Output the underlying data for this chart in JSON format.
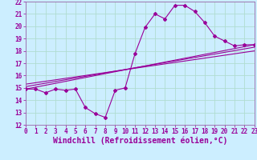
{
  "xlabel": "Windchill (Refroidissement éolien,°C)",
  "bg_color": "#cceeff",
  "grid_color": "#b0ddd0",
  "line_color": "#990099",
  "spine_color": "#9966aa",
  "x_min": 0,
  "x_max": 23,
  "y_min": 12,
  "y_max": 22,
  "series_main_x": [
    0,
    1,
    2,
    3,
    4,
    5,
    6,
    7,
    8,
    9,
    10,
    11,
    12,
    13,
    14,
    15,
    16,
    17,
    18,
    19,
    20,
    21,
    22,
    23
  ],
  "series_main_y": [
    14.9,
    14.9,
    14.6,
    14.9,
    14.8,
    14.9,
    13.4,
    12.9,
    12.6,
    14.8,
    15.0,
    17.8,
    19.9,
    21.0,
    20.6,
    21.7,
    21.7,
    21.2,
    20.3,
    19.2,
    18.8,
    18.4,
    18.5,
    18.5
  ],
  "series_line2_x": [
    0,
    23
  ],
  "series_line2_y": [
    14.9,
    18.5
  ],
  "series_line3_x": [
    0,
    23
  ],
  "series_line3_y": [
    15.1,
    18.3
  ],
  "series_line4_x": [
    0,
    23
  ],
  "series_line4_y": [
    15.3,
    18.0
  ],
  "x_ticks": [
    0,
    1,
    2,
    3,
    4,
    5,
    6,
    7,
    8,
    9,
    10,
    11,
    12,
    13,
    14,
    15,
    16,
    17,
    18,
    19,
    20,
    21,
    22,
    23
  ],
  "y_ticks": [
    12,
    13,
    14,
    15,
    16,
    17,
    18,
    19,
    20,
    21,
    22
  ],
  "tick_fontsize": 5.5,
  "xlabel_fontsize": 7.0
}
